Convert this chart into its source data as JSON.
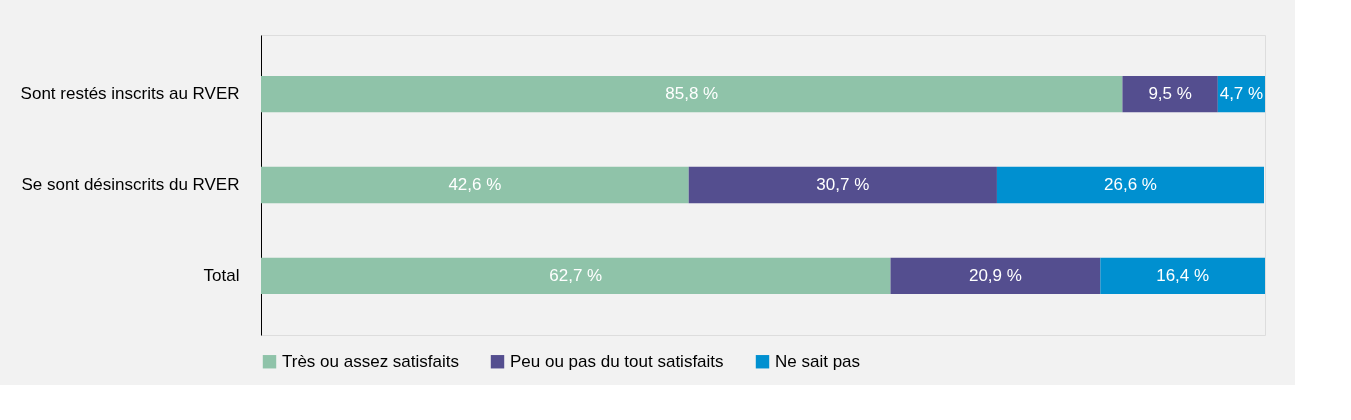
{
  "chart_data": {
    "type": "bar",
    "orientation": "horizontal",
    "stacked": true,
    "legend": "bottom",
    "grid": false,
    "categories": [
      "Sont restés inscrits au RVER",
      "Se sont désinscrits du RVER",
      "Total"
    ],
    "series": [
      {
        "name": "Très ou assez satisfaits",
        "color": "#8fc3a9",
        "values": [
          85.8,
          42.6,
          62.7
        ],
        "value_labels": [
          "85,8 %",
          "42,6 %",
          "62,7 %"
        ]
      },
      {
        "name": "Peu ou pas du tout satisfaits",
        "color": "#544e8f",
        "values": [
          9.5,
          30.7,
          20.9
        ],
        "value_labels": [
          "9,5 %",
          "30,7 %",
          "20,9 %"
        ]
      },
      {
        "name": "Ne sait pas",
        "color": "#0090d0",
        "values": [
          4.7,
          26.6,
          16.4
        ],
        "value_labels": [
          "4,7 %",
          "26,6 %",
          "16,4 %"
        ]
      }
    ]
  }
}
